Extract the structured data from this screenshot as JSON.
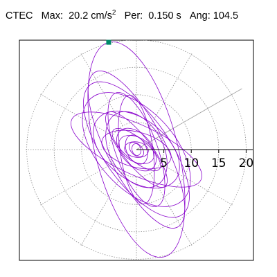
{
  "header": {
    "station": "CTEC",
    "max_label": "Max:",
    "max_value": "20.2 cm/s",
    "max_exp": "2",
    "per_label": "Per:",
    "per_value": "0.150 s",
    "ang_label": "Ang:",
    "ang_value": "104.5"
  },
  "chart_data": {
    "type": "polar-orbit",
    "radial_ticks": [
      "5",
      "10",
      "15",
      "20"
    ],
    "radial_tick_values": [
      5,
      10,
      15,
      20
    ],
    "rmax": 20.2,
    "max_amplitude_cm_s2": 20.2,
    "period_s": 0.15,
    "angle_deg": 104.5,
    "angle_line_deg": 30,
    "spoke_angles_deg": [
      0,
      30,
      60,
      90,
      120,
      150,
      180,
      210,
      240,
      270,
      300,
      330
    ],
    "grid": "dotted",
    "orbit_color": "#8800cc",
    "peak_marker_color": "#008a6a",
    "frame_color": "#000000",
    "grid_color": "#8a8a8a",
    "orbit_ellipses": [
      {
        "a": 20.2,
        "b": 7.5,
        "rot_deg": 104.5
      },
      {
        "a": 14.5,
        "b": 6.0,
        "rot_deg": 125
      },
      {
        "a": 16.0,
        "b": 5.2,
        "rot_deg": 118
      },
      {
        "a": 12.5,
        "b": 7.0,
        "rot_deg": 132
      },
      {
        "a": 11.0,
        "b": 3.8,
        "rot_deg": 110
      },
      {
        "a": 9.0,
        "b": 5.5,
        "rot_deg": 142
      },
      {
        "a": 13.0,
        "b": 4.5,
        "rot_deg": 155
      },
      {
        "a": 7.5,
        "b": 4.8,
        "rot_deg": 120
      },
      {
        "a": 6.5,
        "b": 3.2,
        "rot_deg": 165
      },
      {
        "a": 10.0,
        "b": 3.0,
        "rot_deg": 98
      },
      {
        "a": 4.5,
        "b": 2.8,
        "rot_deg": 130
      },
      {
        "a": 3.5,
        "b": 2.2,
        "rot_deg": 150
      },
      {
        "a": 2.8,
        "b": 1.8,
        "rot_deg": 115
      },
      {
        "a": 2.2,
        "b": 1.4,
        "rot_deg": 170
      },
      {
        "a": 1.6,
        "b": 1.0,
        "rot_deg": 135
      },
      {
        "a": 1.1,
        "b": 0.8,
        "rot_deg": 105
      },
      {
        "a": 5.5,
        "b": 2.0,
        "rot_deg": 140
      },
      {
        "a": 8.5,
        "b": 2.6,
        "rot_deg": 128
      }
    ]
  }
}
